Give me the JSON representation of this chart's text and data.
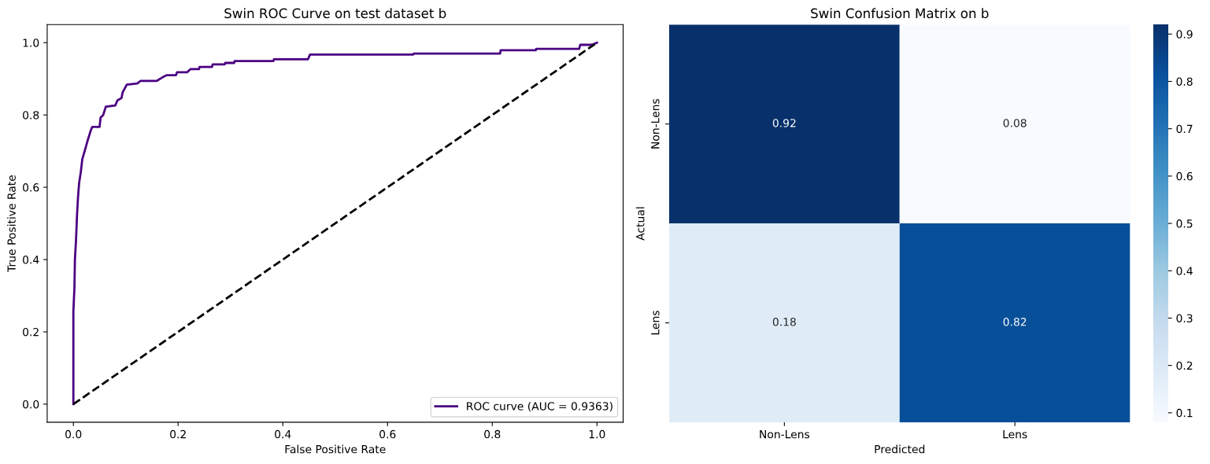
{
  "chart_data": [
    {
      "type": "line",
      "title": "Swin ROC Curve on test dataset b",
      "xlabel": "False Positive Rate",
      "ylabel": "True Positive Rate",
      "series": [
        {
          "name": "ROC curve (AUC = 0.9363)",
          "color": "#4b0082",
          "line_style": "solid",
          "x": [
            0,
            0,
            0.002,
            0.003,
            0.005,
            0.007,
            0.009,
            0.011,
            0.014,
            0.017,
            0.027,
            0.033,
            0.036,
            0.05,
            0.052,
            0.057,
            0.062,
            0.08,
            0.084,
            0.092,
            0.094,
            0.102,
            0.122,
            0.128,
            0.159,
            0.169,
            0.178,
            0.196,
            0.198,
            0.217,
            0.224,
            0.24,
            0.241,
            0.265,
            0.266,
            0.289,
            0.29,
            0.307,
            0.308,
            0.382,
            0.383,
            0.448,
            0.452,
            0.649,
            0.65,
            0.815,
            0.816,
            0.883,
            0.884,
            0.966,
            0.968,
            0.99,
            1
          ],
          "values": [
            0,
            0.256,
            0.321,
            0.401,
            0.452,
            0.524,
            0.575,
            0.612,
            0.64,
            0.677,
            0.728,
            0.756,
            0.767,
            0.767,
            0.793,
            0.8,
            0.823,
            0.826,
            0.84,
            0.847,
            0.862,
            0.884,
            0.887,
            0.894,
            0.894,
            0.903,
            0.91,
            0.91,
            0.918,
            0.918,
            0.927,
            0.927,
            0.933,
            0.933,
            0.94,
            0.94,
            0.944,
            0.944,
            0.949,
            0.949,
            0.954,
            0.954,
            0.967,
            0.967,
            0.97,
            0.97,
            0.979,
            0.979,
            0.983,
            0.983,
            0.994,
            0.994,
            1
          ]
        },
        {
          "color": "#000000",
          "line_style": "dashed",
          "x": [
            0,
            1
          ],
          "values": [
            0,
            1
          ]
        }
      ],
      "xlim": [
        -0.05,
        1.05
      ],
      "ylim": [
        -0.05,
        1.05
      ],
      "xticks": [
        {
          "value": 0,
          "label": "0.0"
        },
        {
          "value": 0.2,
          "label": "0.2"
        },
        {
          "value": 0.4,
          "label": "0.4"
        },
        {
          "value": 0.6,
          "label": "0.6"
        },
        {
          "value": 0.8,
          "label": "0.8"
        },
        {
          "value": 1,
          "label": "1.0"
        }
      ],
      "yticks": [
        {
          "value": 0,
          "label": "0.0"
        },
        {
          "value": 0.2,
          "label": "0.2"
        },
        {
          "value": 0.4,
          "label": "0.4"
        },
        {
          "value": 0.6,
          "label": "0.6"
        },
        {
          "value": 0.8,
          "label": "0.8"
        },
        {
          "value": 1,
          "label": "1.0"
        }
      ],
      "legend": "lower right",
      "grid": false
    },
    {
      "type": "heatmap",
      "title": "Swin Confusion Matrix on b",
      "xlabel": "Predicted",
      "ylabel": "Actual",
      "categories": [
        "Non-Lens",
        "Lens"
      ],
      "y_categories": [
        "Non-Lens",
        "Lens"
      ],
      "cells": [
        [
          0.92,
          0.08
        ],
        [
          0.18,
          0.82
        ]
      ],
      "data_labels": true,
      "clim": [
        0.08,
        0.92
      ],
      "cticks": [
        0.1,
        0.2,
        0.3,
        0.4,
        0.5,
        0.6,
        0.7,
        0.8,
        0.9
      ]
    }
  ]
}
